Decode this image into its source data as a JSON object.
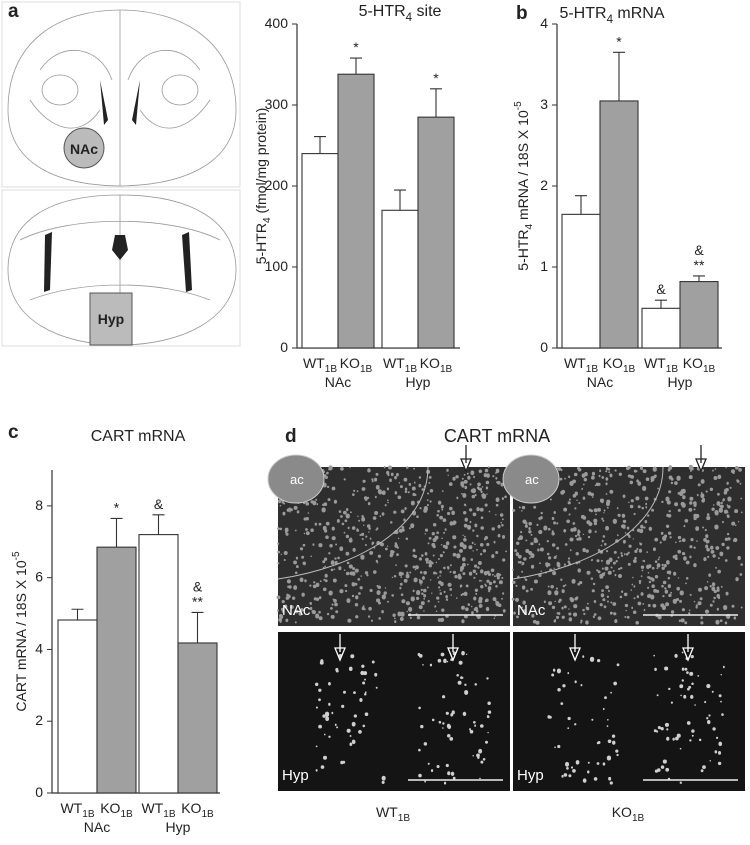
{
  "panel_labels": [
    "a",
    "b",
    "c",
    "d"
  ],
  "atlas": {
    "labels": [
      "NAc",
      "Hyp"
    ]
  },
  "chart_data": [
    {
      "type": "bar",
      "title": "5-HTR4 site",
      "y_label": "5-HTR4 (fmol/mg protein)",
      "categories": [
        "WT1B",
        "KO1B",
        "WT1B",
        "KO1B"
      ],
      "groups": [
        "NAc",
        "Hyp"
      ],
      "values": [
        240,
        338,
        170,
        285
      ],
      "errors": [
        21,
        20,
        25,
        35
      ],
      "colors": [
        "#ffffff",
        "#a0a0a0",
        "#ffffff",
        "#a0a0a0"
      ],
      "annotations": [
        [],
        [
          "*"
        ],
        [],
        [
          "*"
        ]
      ],
      "ylim": [
        0,
        400
      ],
      "yticks": [
        0,
        100,
        200,
        300,
        400
      ]
    },
    {
      "type": "bar",
      "title": "5-HTR4 mRNA",
      "y_label": "5-HTR4 mRNA / 18S X 10-5",
      "categories": [
        "WT1B",
        "KO1B",
        "WT1B",
        "KO1B"
      ],
      "groups": [
        "NAc",
        "Hyp"
      ],
      "values": [
        1.65,
        3.05,
        0.49,
        0.82
      ],
      "errors": [
        0.23,
        0.6,
        0.1,
        0.07
      ],
      "colors": [
        "#ffffff",
        "#a0a0a0",
        "#ffffff",
        "#a0a0a0"
      ],
      "annotations": [
        [],
        [
          "*"
        ],
        [
          "&"
        ],
        [
          "**",
          "&"
        ]
      ],
      "ylim": [
        0,
        4
      ],
      "yticks": [
        0,
        1,
        2,
        3,
        4
      ]
    },
    {
      "type": "bar",
      "title": "CART mRNA",
      "y_label": "CART mRNA / 18S X 10-5",
      "categories": [
        "WT1B",
        "KO1B",
        "WT1B",
        "KO1B"
      ],
      "groups": [
        "NAc",
        "Hyp"
      ],
      "values": [
        4.82,
        6.85,
        7.2,
        4.18
      ],
      "errors": [
        0.3,
        0.8,
        0.55,
        0.85
      ],
      "colors": [
        "#ffffff",
        "#a0a0a0",
        "#ffffff",
        "#a0a0a0"
      ],
      "annotations": [
        [],
        [
          "*"
        ],
        [
          "&"
        ],
        [
          "**",
          "&"
        ]
      ],
      "ylim": [
        0,
        9
      ],
      "yticks": [
        0,
        2,
        4,
        6,
        8
      ]
    }
  ],
  "micrographs": {
    "title": "CART mRNA",
    "region_labels": [
      "NAc",
      "Hyp"
    ],
    "structure_label": "ac",
    "genotypes": [
      "WT1B",
      "KO1B"
    ]
  }
}
